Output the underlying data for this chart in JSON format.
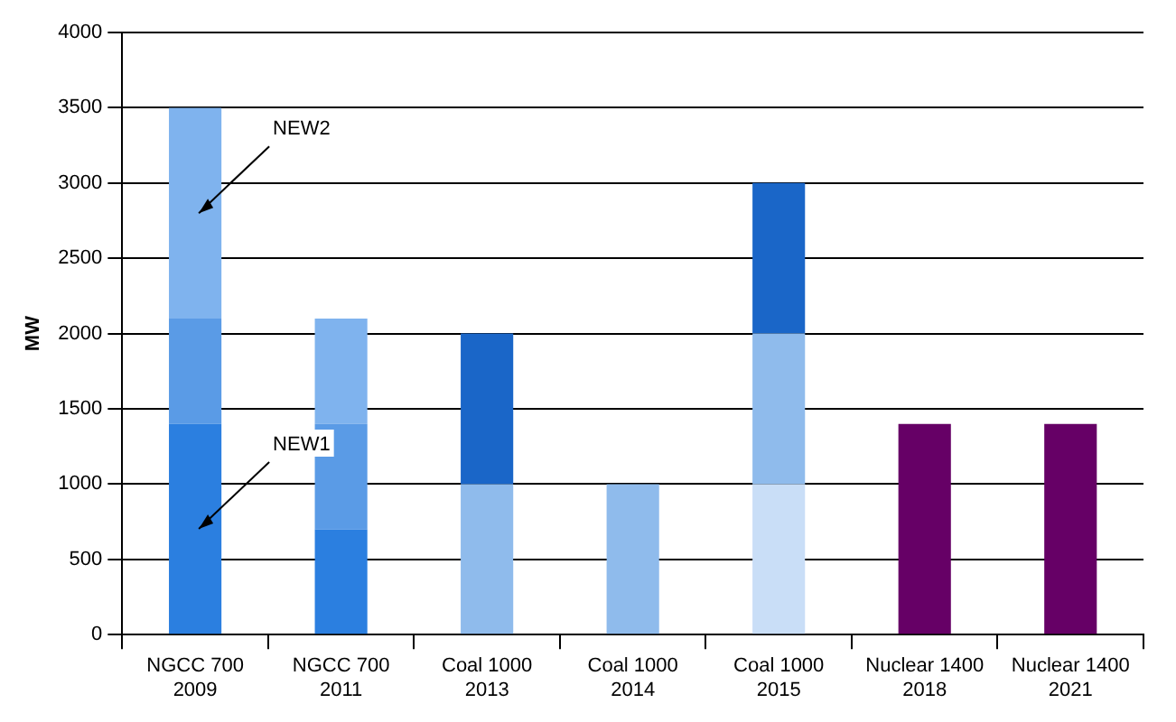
{
  "chart_data": {
    "type": "bar",
    "stacked": true,
    "ylabel": "MW",
    "categories": [
      "NGCC 700\n2009",
      "NGCC 700\n2011",
      "Coal 1000\n2013",
      "Coal 1000\n2014",
      "Coal 1000\n2015",
      "Nuclear 1400\n2018",
      "Nuclear 1400\n2021"
    ],
    "series": [
      {
        "name": "NEW1",
        "color": "#2b7fe0",
        "values": [
          1400,
          700,
          null,
          null,
          null,
          null,
          null
        ]
      },
      {
        "color": "#5a9be6",
        "values": [
          700,
          700,
          null,
          null,
          null,
          null,
          null
        ]
      },
      {
        "name": "NEW2",
        "color": "#7fb3ee",
        "values": [
          1400,
          700,
          null,
          null,
          null,
          null,
          null
        ]
      },
      {
        "color": "#c9def7",
        "values": [
          null,
          null,
          null,
          null,
          1000,
          null,
          null
        ]
      },
      {
        "color": "#8fbbec",
        "values": [
          null,
          null,
          1000,
          1000,
          1000,
          null,
          null
        ]
      },
      {
        "color": "#1a66c8",
        "values": [
          null,
          null,
          1000,
          null,
          1000,
          null,
          null
        ]
      },
      {
        "color": "#660066",
        "values": [
          null,
          null,
          null,
          null,
          null,
          1400,
          1400
        ]
      }
    ],
    "ylim": [
      0,
      4000
    ],
    "yticks": [
      0,
      500,
      1000,
      1500,
      2000,
      2500,
      3000,
      3500,
      4000
    ],
    "grid": "y",
    "legend": false
  }
}
